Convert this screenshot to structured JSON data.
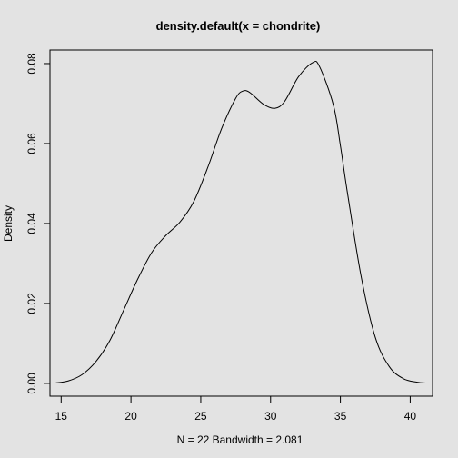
{
  "chart_data": {
    "type": "line",
    "title": "density.default(x = chondrite)",
    "xlabel": "N = 22   Bandwidth = 2.081",
    "ylabel": "Density",
    "xlim": [
      14.2,
      41.6
    ],
    "ylim": [
      -0.0032,
      0.0834
    ],
    "x_ticks": [
      15,
      20,
      25,
      30,
      35,
      40
    ],
    "y_ticks": [
      0.0,
      0.02,
      0.04,
      0.06,
      0.08
    ],
    "x_tick_labels": [
      "15",
      "20",
      "25",
      "30",
      "35",
      "40"
    ],
    "y_tick_labels": [
      "0.00",
      "0.02",
      "0.04",
      "0.06",
      "0.08"
    ],
    "series": [
      {
        "name": "density",
        "x": [
          14.6,
          15.5,
          16.5,
          17.5,
          18.5,
          19.5,
          20.5,
          21.5,
          22.5,
          23.5,
          24.5,
          25.5,
          26.5,
          27.5,
          28.0,
          28.5,
          29.5,
          30.3,
          31.0,
          32.0,
          33.0,
          33.5,
          34.5,
          35.0,
          35.5,
          36.5,
          37.5,
          38.5,
          39.5,
          40.5,
          41.1
        ],
        "y": [
          0.0001,
          0.0006,
          0.0022,
          0.0055,
          0.0108,
          0.0185,
          0.0262,
          0.0328,
          0.037,
          0.0403,
          0.0455,
          0.054,
          0.0638,
          0.0713,
          0.0731,
          0.0728,
          0.0698,
          0.0688,
          0.0705,
          0.0767,
          0.0802,
          0.0793,
          0.0696,
          0.0595,
          0.0478,
          0.0265,
          0.0115,
          0.0042,
          0.0012,
          0.0003,
          0.0001
        ]
      }
    ]
  }
}
